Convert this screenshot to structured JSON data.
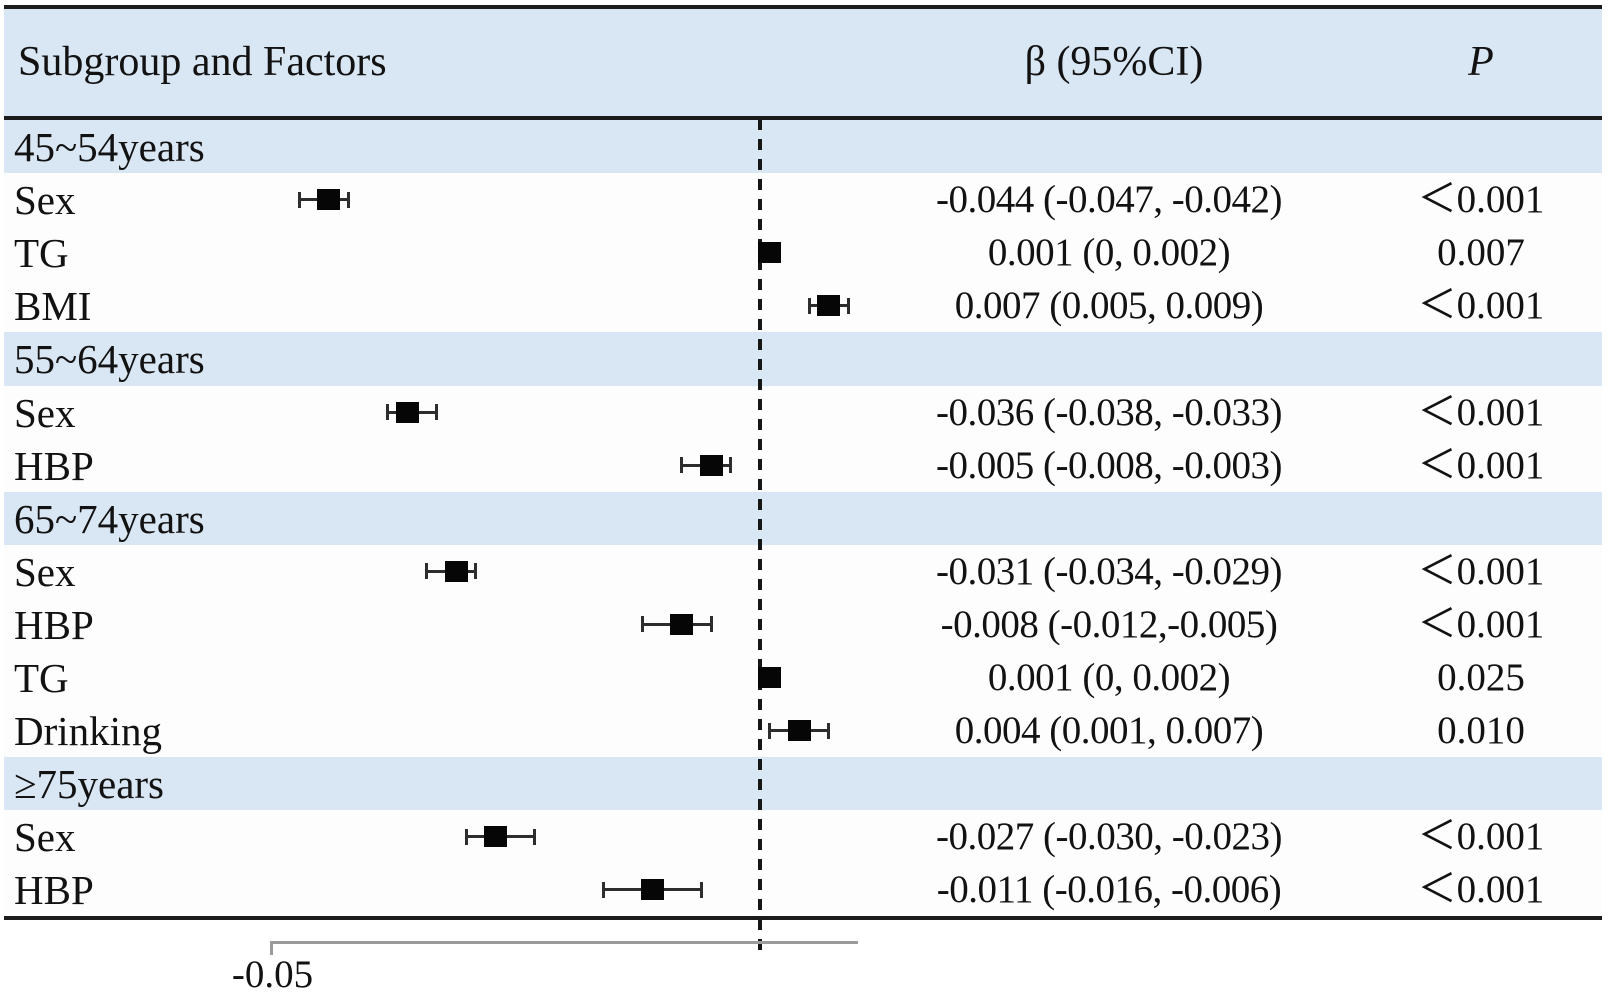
{
  "header": {
    "col_factors": "Subgroup and Factors",
    "col_beta": "β (95%CI)",
    "col_p": "P"
  },
  "colors": {
    "band_blue": "#d9e6f3",
    "row_white": "#fdfdfd",
    "marker_black": "#060606",
    "axis_gray": "#9a9a9a",
    "rule_black": "#1c1c1c"
  },
  "chart_data": {
    "type": "scatter",
    "variant": "forest-plot",
    "title": "",
    "xlabel": "",
    "x_axis": {
      "range": [
        -0.05,
        0.01
      ],
      "tick_labels": [
        "-0.05"
      ],
      "tick_values": [
        -0.05
      ],
      "zero_reference_line": 0,
      "zero_line_style": "dashed",
      "grid": false
    },
    "columns": [
      "Subgroup and Factors",
      "β (95%CI)",
      "P"
    ],
    "groups": [
      {
        "label": "45~54years",
        "rows": [
          {
            "factor": "Sex",
            "beta": -0.044,
            "ci": [
              -0.047,
              -0.042
            ],
            "beta_text": "-0.044 (-0.047, -0.042)",
            "p": "＜0.001"
          },
          {
            "factor": "TG",
            "beta": 0.001,
            "ci": [
              0,
              0.002
            ],
            "beta_text": "0.001 (0, 0.002)",
            "p": "0.007"
          },
          {
            "factor": "BMI",
            "beta": 0.007,
            "ci": [
              0.005,
              0.009
            ],
            "beta_text": "0.007 (0.005, 0.009)",
            "p": "＜0.001"
          }
        ]
      },
      {
        "label": "55~64years",
        "rows": [
          {
            "factor": "Sex",
            "beta": -0.036,
            "ci": [
              -0.038,
              -0.033
            ],
            "beta_text": "-0.036 (-0.038, -0.033)",
            "p": "＜0.001"
          },
          {
            "factor": "HBP",
            "beta": -0.005,
            "ci": [
              -0.008,
              -0.003
            ],
            "beta_text": "-0.005 (-0.008, -0.003)",
            "p": "＜0.001"
          }
        ]
      },
      {
        "label": "65~74years",
        "rows": [
          {
            "factor": "Sex",
            "beta": -0.031,
            "ci": [
              -0.034,
              -0.029
            ],
            "beta_text": "-0.031 (-0.034, -0.029)",
            "p": "＜0.001"
          },
          {
            "factor": "HBP",
            "beta": -0.008,
            "ci": [
              -0.012,
              -0.005
            ],
            "beta_text": "-0.008 (-0.012,-0.005)",
            "p": "＜0.001"
          },
          {
            "factor": "TG",
            "beta": 0.001,
            "ci": [
              0,
              0.002
            ],
            "beta_text": "0.001 (0, 0.002)",
            "p": "0.025"
          },
          {
            "factor": "Drinking",
            "beta": 0.004,
            "ci": [
              0.001,
              0.007
            ],
            "beta_text": "0.004 (0.001, 0.007)",
            "p": "0.010"
          }
        ]
      },
      {
        "label": "≥75years",
        "rows": [
          {
            "factor": "Sex",
            "beta": -0.027,
            "ci": [
              -0.03,
              -0.023
            ],
            "beta_text": "-0.027 (-0.030, -0.023)",
            "p": "＜0.001"
          },
          {
            "factor": "HBP",
            "beta": -0.011,
            "ci": [
              -0.016,
              -0.006
            ],
            "beta_text": "-0.011 (-0.016, -0.006)",
            "p": "＜0.001"
          }
        ]
      }
    ]
  }
}
